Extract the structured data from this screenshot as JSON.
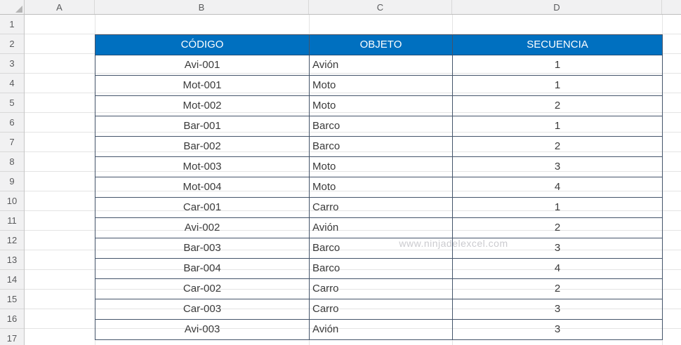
{
  "sheet": {
    "column_headers": [
      "A",
      "B",
      "C",
      "D"
    ],
    "row_numbers": [
      "1",
      "2",
      "3",
      "4",
      "5",
      "6",
      "7",
      "8",
      "9",
      "10",
      "11",
      "12",
      "13",
      "14",
      "15",
      "16",
      "17"
    ]
  },
  "table": {
    "headers": {
      "codigo": "CÓDIGO",
      "objeto": "OBJETO",
      "secuencia": "SECUENCIA"
    },
    "rows": [
      {
        "codigo": "Avi-001",
        "objeto": "Avión",
        "secuencia": "1"
      },
      {
        "codigo": "Mot-001",
        "objeto": "Moto",
        "secuencia": "1"
      },
      {
        "codigo": "Mot-002",
        "objeto": "Moto",
        "secuencia": "2"
      },
      {
        "codigo": "Bar-001",
        "objeto": "Barco",
        "secuencia": "1"
      },
      {
        "codigo": "Bar-002",
        "objeto": "Barco",
        "secuencia": "2"
      },
      {
        "codigo": "Mot-003",
        "objeto": "Moto",
        "secuencia": "3"
      },
      {
        "codigo": "Mot-004",
        "objeto": "Moto",
        "secuencia": "4"
      },
      {
        "codigo": "Car-001",
        "objeto": "Carro",
        "secuencia": "1"
      },
      {
        "codigo": "Avi-002",
        "objeto": "Avión",
        "secuencia": "2"
      },
      {
        "codigo": "Bar-003",
        "objeto": "Barco",
        "secuencia": "3"
      },
      {
        "codigo": "Bar-004",
        "objeto": "Barco",
        "secuencia": "4"
      },
      {
        "codigo": "Car-002",
        "objeto": "Carro",
        "secuencia": "2"
      },
      {
        "codigo": "Car-003",
        "objeto": "Carro",
        "secuencia": "3"
      },
      {
        "codigo": "Avi-003",
        "objeto": "Avión",
        "secuencia": "3"
      }
    ]
  },
  "watermark": {
    "text": "www.ninjadelexcel.com"
  },
  "colors": {
    "table_header_fill": "#0070C0",
    "table_header_text": "#FFFFFF",
    "table_border": "#44546A",
    "gridline": "#E4E4E4",
    "heading_bg": "#F1F1F2",
    "heading_text": "#58595B",
    "cell_text": "#3A3A3A",
    "watermark_text": "#CBCBCF"
  }
}
